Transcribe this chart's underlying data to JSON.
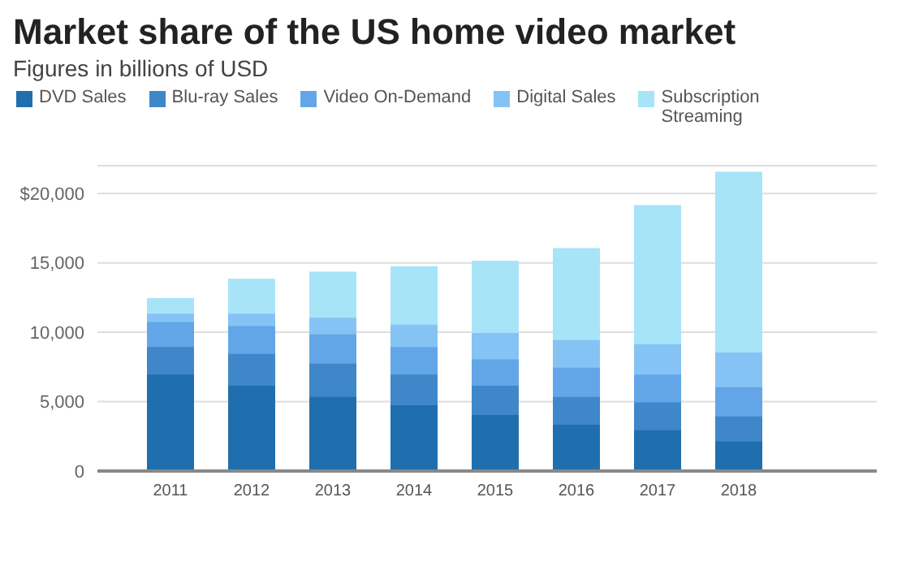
{
  "chart_data": {
    "type": "bar",
    "title": "Market share of the US home video market",
    "subtitle": "Figures in billions of USD",
    "stacked": true,
    "legend": "top",
    "grid": "y",
    "categories": [
      "2011",
      "2012",
      "2013",
      "2014",
      "2015",
      "2016",
      "2017",
      "2018"
    ],
    "series": [
      {
        "name": "DVD Sales",
        "color": "#1f6fae",
        "values": [
          7000,
          6200,
          5400,
          4800,
          4100,
          3400,
          3000,
          2200
        ]
      },
      {
        "name": "Blu-ray Sales",
        "color": "#3f87c8",
        "values": [
          2000,
          2300,
          2400,
          2200,
          2100,
          2000,
          2000,
          1800
        ]
      },
      {
        "name": "Video On-Demand",
        "color": "#62a6e8",
        "values": [
          1800,
          2000,
          2100,
          2000,
          1900,
          2100,
          2000,
          2100
        ]
      },
      {
        "name": "Digital Sales",
        "color": "#86c3f5",
        "values": [
          600,
          900,
          1200,
          1600,
          1900,
          2000,
          2200,
          2500
        ]
      },
      {
        "name": "Subscription Streaming",
        "color": "#a8e4f8",
        "values": [
          1000,
          2400,
          3200,
          4100,
          5100,
          6500,
          9900,
          12900
        ]
      }
    ],
    "ylim": [
      0,
      22000
    ],
    "yticks": [
      0,
      {
        "value": 5000,
        "label": "5,000"
      },
      {
        "value": 10000,
        "label": "10,000"
      },
      {
        "value": 15000,
        "label": "15,000"
      },
      {
        "value": 20000,
        "label": "$20,000"
      }
    ]
  }
}
